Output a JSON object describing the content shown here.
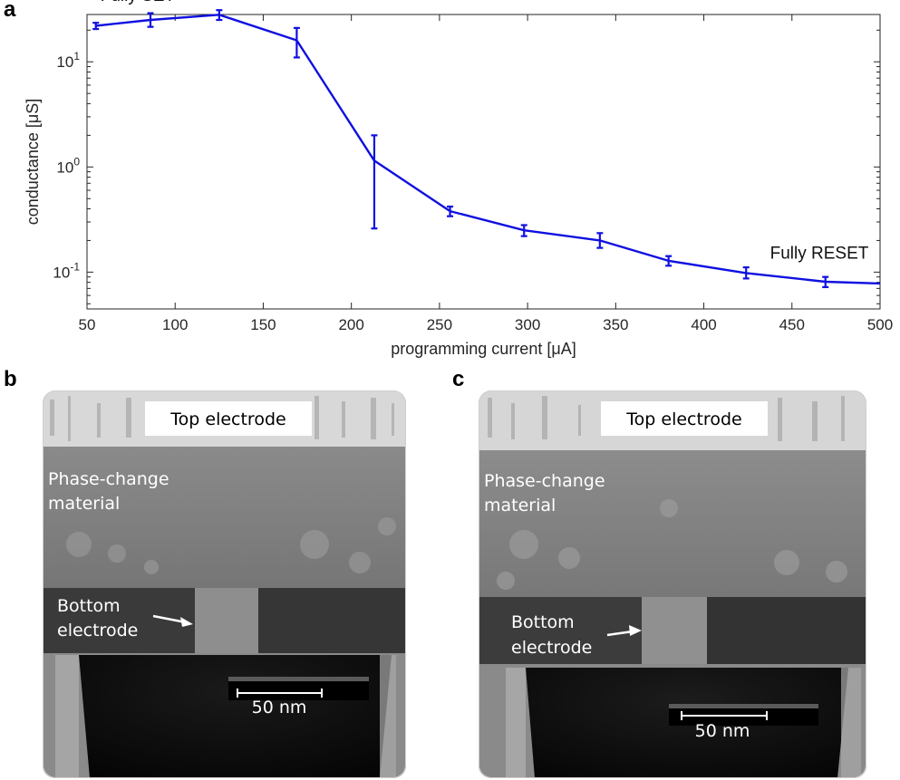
{
  "panels": {
    "a": "a",
    "b": "b",
    "c": "c"
  },
  "chart_data": {
    "type": "line",
    "xlabel": "programming current [μA]",
    "ylabel": "conductance [μS]",
    "xlim": [
      50,
      500
    ],
    "ylim_log10": [
      -1.35,
      1.45
    ],
    "yscale": "log",
    "grid": false,
    "xticks": [
      50,
      100,
      150,
      200,
      250,
      300,
      350,
      400,
      450,
      500
    ],
    "yticks": [
      {
        "exp": -1,
        "base": "10",
        "label": "-1"
      },
      {
        "exp": 0,
        "base": "10",
        "label": "0"
      },
      {
        "exp": 1,
        "base": "10",
        "label": "1"
      }
    ],
    "series": [
      {
        "name": "conductance",
        "color": "#1010e0",
        "x": [
          55,
          86,
          125,
          169,
          213,
          256,
          298,
          341,
          380,
          424,
          469,
          500
        ],
        "y": [
          22,
          25,
          28,
          16,
          1.15,
          0.38,
          0.25,
          0.2,
          0.128,
          0.098,
          0.081,
          0.078
        ],
        "ylow": [
          20.5,
          21.5,
          25,
          11,
          0.26,
          0.34,
          0.22,
          0.17,
          0.115,
          0.087,
          0.072,
          null
        ],
        "yhigh": [
          23.5,
          29,
          31,
          21,
          2.0,
          0.42,
          0.28,
          0.235,
          0.142,
          0.111,
          0.09,
          null
        ]
      }
    ],
    "annotations": [
      {
        "text": "Fully SET",
        "x": 55,
        "y": 38
      },
      {
        "text": "Fully RESET",
        "x": 435,
        "y": 0.134
      }
    ]
  },
  "tem_b": {
    "top_label": "Top electrode",
    "pcm_label_1": "Phase-change",
    "pcm_label_2": "material",
    "bottom_label_1": "Bottom",
    "bottom_label_2": "electrode",
    "scale_label": "50 nm"
  },
  "tem_c": {
    "top_label": "Top electrode",
    "pcm_label_1": "Phase-change",
    "pcm_label_2": "material",
    "bottom_label_1": "Bottom",
    "bottom_label_2": "electrode",
    "scale_label": "50 nm"
  }
}
